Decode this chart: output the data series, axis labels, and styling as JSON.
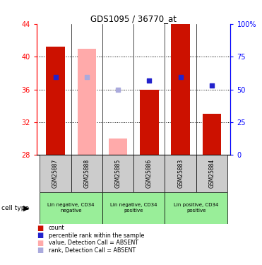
{
  "title": "GDS1095 / 36770_at",
  "samples": [
    "GSM25887",
    "GSM25888",
    "GSM25885",
    "GSM25886",
    "GSM25883",
    "GSM25884"
  ],
  "bar_values": [
    41.2,
    41.0,
    30.0,
    36.0,
    44.0,
    33.0
  ],
  "bar_absent": [
    false,
    true,
    true,
    false,
    false,
    false
  ],
  "rank_values": [
    37.5,
    37.5,
    36.0,
    37.1,
    37.5,
    36.5
  ],
  "rank_absent": [
    false,
    true,
    true,
    false,
    false,
    false
  ],
  "ylim_left": [
    28,
    44
  ],
  "ylim_right": [
    0,
    100
  ],
  "yticks_left": [
    28,
    32,
    36,
    40,
    44
  ],
  "yticks_right": [
    0,
    25,
    50,
    75,
    100
  ],
  "ytick_labels_right": [
    "0",
    "25",
    "50",
    "75",
    "100%"
  ],
  "cell_type_groups": [
    {
      "label": "Lin negative, CD34\nnegative",
      "start": 0,
      "end": 2
    },
    {
      "label": "Lin negative, CD34\npositive",
      "start": 2,
      "end": 4
    },
    {
      "label": "Lin positive, CD34\npositive",
      "start": 4,
      "end": 6
    }
  ],
  "color_red": "#cc1100",
  "color_pink": "#ffaaaa",
  "color_blue": "#2222cc",
  "color_lightblue": "#aaaadd",
  "color_gray": "#cccccc",
  "color_green_bg": "#99ee99",
  "legend_items": [
    {
      "color": "#cc1100",
      "label": "count"
    },
    {
      "color": "#2222cc",
      "label": "percentile rank within the sample"
    },
    {
      "color": "#ffaaaa",
      "label": "value, Detection Call = ABSENT"
    },
    {
      "color": "#aaaadd",
      "label": "rank, Detection Call = ABSENT"
    }
  ],
  "bar_bottom": 28,
  "bar_width": 0.6,
  "cell_type_label": "cell type",
  "sample_box_color": "#cccccc",
  "grid_yticks": [
    32,
    36,
    40
  ],
  "fig_width": 3.71,
  "fig_height": 3.75,
  "dpi": 100
}
